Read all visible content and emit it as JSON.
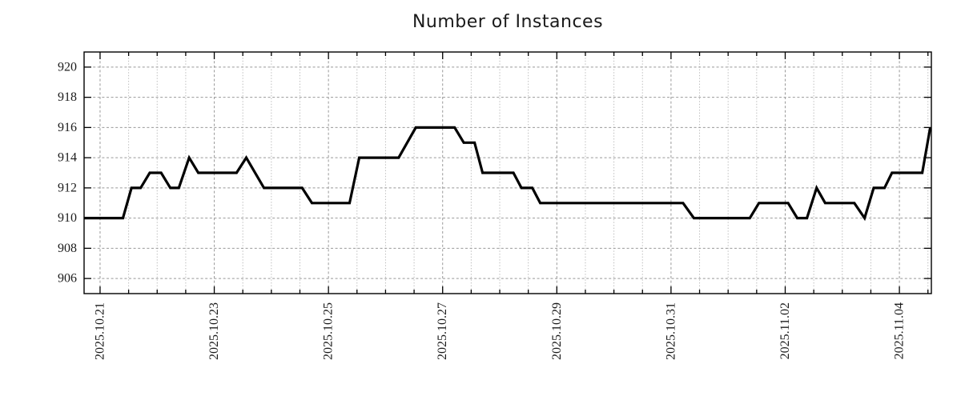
{
  "title": "Number of Instances",
  "chart_data": {
    "type": "line",
    "title": "Number of Instances",
    "xlabel": "",
    "ylabel": "",
    "legend": null,
    "grid": true,
    "x_axis": {
      "tick_labels": [
        "2025.10.21",
        "2025.10.23",
        "2025.10.25",
        "2025.10.27",
        "2025.10.29",
        "2025.10.31",
        "2025.11.02",
        "2025.11.04"
      ],
      "tick_positions": [
        21,
        23,
        25,
        27,
        29,
        31,
        33,
        35
      ],
      "minor_step": 0.5,
      "lim": [
        20.72,
        35.56
      ]
    },
    "y_axis": {
      "tick_labels": [
        "906",
        "908",
        "910",
        "912",
        "914",
        "916",
        "918",
        "920"
      ],
      "tick_positions": [
        906,
        908,
        910,
        912,
        914,
        916,
        918,
        920
      ],
      "lim": [
        905,
        921
      ]
    },
    "series": [
      {
        "name": "Number of Instances",
        "color": "#000000",
        "points": [
          [
            20.72,
            910
          ],
          [
            21.4,
            910
          ],
          [
            21.55,
            912
          ],
          [
            21.71,
            912
          ],
          [
            21.87,
            913
          ],
          [
            22.07,
            913
          ],
          [
            22.23,
            912
          ],
          [
            22.38,
            912
          ],
          [
            22.56,
            914
          ],
          [
            22.72,
            913
          ],
          [
            23.39,
            913
          ],
          [
            23.56,
            914
          ],
          [
            23.87,
            912
          ],
          [
            24.54,
            912
          ],
          [
            24.71,
            911
          ],
          [
            25.37,
            911
          ],
          [
            25.54,
            914
          ],
          [
            26.23,
            914
          ],
          [
            26.53,
            916
          ],
          [
            27.21,
            916
          ],
          [
            27.37,
            915
          ],
          [
            27.56,
            915
          ],
          [
            27.7,
            913
          ],
          [
            28.24,
            913
          ],
          [
            28.38,
            912
          ],
          [
            28.57,
            912
          ],
          [
            28.71,
            911
          ],
          [
            31.21,
            911
          ],
          [
            31.4,
            910
          ],
          [
            32.38,
            910
          ],
          [
            32.54,
            911
          ],
          [
            33.05,
            911
          ],
          [
            33.21,
            910
          ],
          [
            33.38,
            910
          ],
          [
            33.55,
            912
          ],
          [
            33.7,
            911
          ],
          [
            34.21,
            911
          ],
          [
            34.39,
            910
          ],
          [
            34.55,
            912
          ],
          [
            34.74,
            912
          ],
          [
            34.87,
            913
          ],
          [
            35.4,
            913
          ],
          [
            35.54,
            916
          ]
        ]
      }
    ],
    "colors": {
      "line": "#000000",
      "grid_major": "#999999",
      "grid_minor": "#bbbbbb",
      "border": "#000000",
      "text": "#1c1c1c",
      "background": "#ffffff"
    }
  }
}
